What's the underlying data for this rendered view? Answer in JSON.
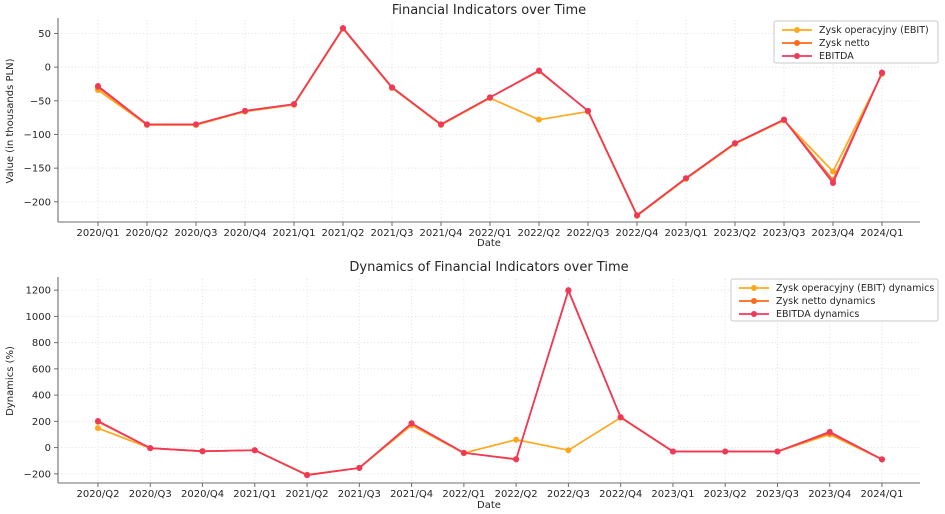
{
  "figure": {
    "background": "#FFFFFF"
  },
  "chart_data": [
    {
      "type": "line",
      "title": "Financial Indicators over Time",
      "xlabel": "Date",
      "ylabel": "Value (in thousands PLN)",
      "ylim": [
        -230,
        70
      ],
      "yticks": [
        50,
        0,
        -50,
        -100,
        -150,
        -200
      ],
      "grid": "dotted",
      "legend_position": "upper right",
      "categories": [
        "2020/Q1",
        "2020/Q2",
        "2020/Q3",
        "2020/Q4",
        "2021/Q1",
        "2021/Q2",
        "2021/Q3",
        "2021/Q4",
        "2022/Q1",
        "2022/Q2",
        "2022/Q3",
        "2022/Q4",
        "2023/Q1",
        "2023/Q2",
        "2023/Q3",
        "2023/Q4",
        "2024/Q1"
      ],
      "series": [
        {
          "name": "Zysk operacyjny (EBIT)",
          "color": "#FFA81E",
          "values": [
            -34,
            -86,
            -86,
            -66,
            -56,
            57,
            -31,
            -86,
            -46,
            -78,
            -66,
            -221,
            -166,
            -114,
            -79,
            -155,
            -10
          ]
        },
        {
          "name": "Zysk netto",
          "color": "#FB6A1E",
          "values": [
            -30,
            -85,
            -85,
            -65,
            -55,
            58,
            -30,
            -85,
            -45,
            -6,
            -65,
            -220,
            -165,
            -113,
            -78,
            -168,
            -9
          ]
        },
        {
          "name": "EBITDA",
          "color": "#F0385B",
          "values": [
            -28,
            -85,
            -85,
            -65,
            -55,
            58,
            -30,
            -85,
            -45,
            -5,
            -65,
            -220,
            -165,
            -113,
            -78,
            -172,
            -8
          ]
        }
      ]
    },
    {
      "type": "line",
      "title": "Dynamics of Financial Indicators over Time",
      "xlabel": "Date",
      "ylabel": "Dynamics (%)",
      "ylim": [
        -270,
        1285
      ],
      "yticks": [
        1200,
        1000,
        800,
        600,
        400,
        200,
        0,
        -200
      ],
      "grid": "dotted",
      "legend_position": "upper right",
      "categories": [
        "2020/Q2",
        "2020/Q3",
        "2020/Q4",
        "2021/Q1",
        "2021/Q2",
        "2021/Q3",
        "2021/Q4",
        "2022/Q1",
        "2022/Q2",
        "2022/Q3",
        "2022/Q4",
        "2023/Q1",
        "2023/Q2",
        "2023/Q3",
        "2023/Q4",
        "2024/Q1"
      ],
      "series": [
        {
          "name": "Zysk operacyjny (EBIT) dynamics",
          "color": "#FFA81E",
          "values": [
            148,
            -5,
            -28,
            -20,
            -207,
            -155,
            170,
            -42,
            60,
            -20,
            228,
            -30,
            -30,
            -30,
            100,
            -90
          ]
        },
        {
          "name": "Zysk netto dynamics",
          "color": "#FB6A1E",
          "values": [
            197,
            -4,
            -28,
            -20,
            -209,
            -155,
            183,
            -40,
            -88,
            1195,
            230,
            -30,
            -30,
            -30,
            112,
            -90
          ]
        },
        {
          "name": "EBITDA dynamics",
          "color": "#F0385B",
          "values": [
            203,
            -4,
            -28,
            -20,
            -210,
            -155,
            185,
            -40,
            -90,
            1200,
            232,
            -30,
            -30,
            -30,
            120,
            -90
          ]
        }
      ]
    }
  ]
}
